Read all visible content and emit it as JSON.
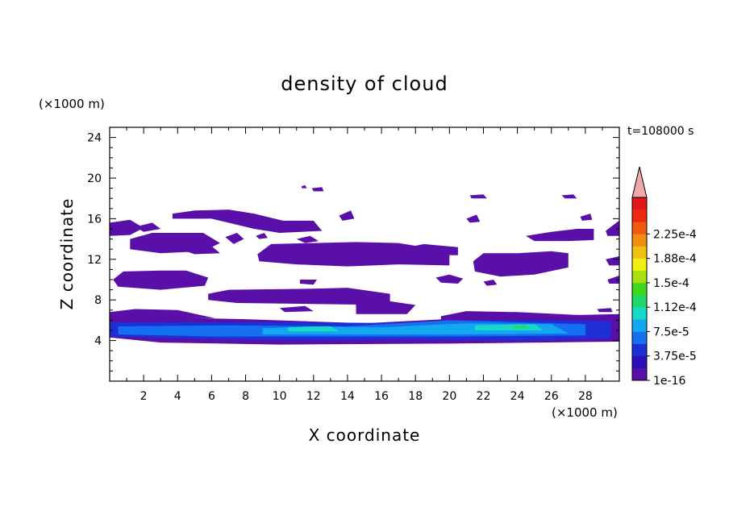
{
  "chart_data": {
    "type": "heatmap",
    "title": "density of cloud",
    "xlabel": "X coordinate",
    "ylabel": "Z coordinate",
    "x_unit": "(×1000 m)",
    "y_unit": "(×1000 m)",
    "time_label": "t=108000 s",
    "xlim": [
      0,
      30
    ],
    "ylim": [
      0,
      25
    ],
    "x_ticks": [
      2,
      4,
      6,
      8,
      10,
      12,
      14,
      16,
      18,
      20,
      22,
      24,
      26,
      28
    ],
    "y_ticks": [
      4,
      8,
      12,
      16,
      20,
      24
    ],
    "colorbar": {
      "labels": [
        "1e-16",
        "3.75e-5",
        "7.5e-5",
        "1.12e-4",
        "1.5e-4",
        "1.88e-4",
        "2.25e-4"
      ],
      "colors": [
        "#5a0fa8",
        "#2b10b8",
        "#1f2fd6",
        "#1470f0",
        "#12a8f0",
        "#18d8c8",
        "#1ed86a",
        "#3ed81c",
        "#a8e010",
        "#f0f010",
        "#f0c010",
        "#f08e10",
        "#f05a10",
        "#f02810",
        "#e01818"
      ],
      "over_color": "#f0a8a8"
    },
    "regions": [
      {
        "level": 0,
        "points": [
          [
            0,
            4.3
          ],
          [
            3,
            3.8
          ],
          [
            10,
            3.6
          ],
          [
            20,
            3.7
          ],
          [
            30,
            3.9
          ],
          [
            30,
            6.6
          ],
          [
            22,
            6.3
          ],
          [
            15,
            5.7
          ],
          [
            8,
            6.1
          ],
          [
            0,
            6.4
          ]
        ]
      },
      {
        "level": 1,
        "points": [
          [
            0,
            4.4
          ],
          [
            7,
            4.1
          ],
          [
            12,
            4.0
          ],
          [
            17,
            4.1
          ],
          [
            24,
            4.0
          ],
          [
            29.5,
            4.2
          ],
          [
            29.5,
            5.9
          ],
          [
            22,
            6.1
          ],
          [
            18,
            5.7
          ],
          [
            11,
            5.8
          ],
          [
            5,
            5.8
          ],
          [
            0,
            5.8
          ]
        ]
      },
      {
        "level": 2,
        "points": [
          [
            0.5,
            4.6
          ],
          [
            6,
            4.4
          ],
          [
            14,
            4.4
          ],
          [
            20,
            4.4
          ],
          [
            28,
            4.5
          ],
          [
            28,
            5.6
          ],
          [
            20,
            6.0
          ],
          [
            14,
            5.4
          ],
          [
            7,
            5.5
          ],
          [
            0.5,
            5.4
          ]
        ]
      },
      {
        "level": 3,
        "points": [
          [
            9,
            4.6
          ],
          [
            14,
            4.6
          ],
          [
            21,
            4.6
          ],
          [
            27,
            4.7
          ],
          [
            26,
            5.6
          ],
          [
            21,
            5.7
          ],
          [
            16,
            5.3
          ],
          [
            12,
            5.4
          ],
          [
            9,
            5.2
          ]
        ]
      },
      {
        "level": 4,
        "points": [
          [
            10.5,
            4.9
          ],
          [
            13.5,
            4.9
          ],
          [
            13,
            5.4
          ],
          [
            10.5,
            5.3
          ]
        ]
      },
      {
        "level": 4,
        "points": [
          [
            21.5,
            5.0
          ],
          [
            25.5,
            5.0
          ],
          [
            25,
            5.6
          ],
          [
            21.5,
            5.5
          ]
        ]
      },
      {
        "level": 5,
        "points": [
          [
            23.7,
            5.2
          ],
          [
            24.7,
            5.2
          ],
          [
            24.5,
            5.5
          ],
          [
            23.8,
            5.5
          ]
        ]
      },
      {
        "level": 0,
        "points": [
          [
            0,
            6.8
          ],
          [
            1.5,
            7.1
          ],
          [
            4,
            7.0
          ],
          [
            6.2,
            6.2
          ],
          [
            0,
            6.2
          ]
        ]
      },
      {
        "level": 0,
        "points": [
          [
            19.5,
            6.4
          ],
          [
            21,
            6.9
          ],
          [
            24,
            6.8
          ],
          [
            29,
            6.4
          ],
          [
            29,
            6.0
          ],
          [
            19.5,
            6.0
          ]
        ]
      },
      {
        "level": 0,
        "points": [
          [
            3,
            6.3
          ],
          [
            3.5,
            6.8
          ],
          [
            4.5,
            6.3
          ]
        ]
      },
      {
        "level": 0,
        "points": [
          [
            14.5,
            7.8
          ],
          [
            16,
            8.0
          ],
          [
            18,
            7.5
          ],
          [
            17.5,
            6.6
          ],
          [
            14.5,
            6.6
          ]
        ]
      },
      {
        "level": 0,
        "points": [
          [
            5.8,
            8.6
          ],
          [
            7,
            9.0
          ],
          [
            12,
            9.1
          ],
          [
            14,
            9.2
          ],
          [
            16.5,
            8.6
          ],
          [
            16.5,
            7.5
          ],
          [
            12,
            7.6
          ],
          [
            7.5,
            7.7
          ],
          [
            5.8,
            8.0
          ]
        ]
      },
      {
        "level": 0,
        "points": [
          [
            0.2,
            10.0
          ],
          [
            0.8,
            10.8
          ],
          [
            3,
            10.9
          ],
          [
            4.5,
            10.9
          ],
          [
            5.8,
            10.2
          ],
          [
            5.6,
            9.4
          ],
          [
            3,
            9.0
          ],
          [
            0.5,
            9.3
          ]
        ]
      },
      {
        "level": 0,
        "points": [
          [
            11.2,
            10.0
          ],
          [
            12.2,
            10.0
          ],
          [
            12,
            9.5
          ],
          [
            11.2,
            9.6
          ]
        ]
      },
      {
        "level": 0,
        "points": [
          [
            1.2,
            14.0
          ],
          [
            2.5,
            14.6
          ],
          [
            4,
            14.6
          ],
          [
            5.5,
            14.6
          ],
          [
            6.5,
            13.6
          ],
          [
            5.5,
            12.8
          ],
          [
            3,
            12.6
          ],
          [
            1.2,
            13.0
          ]
        ]
      },
      {
        "level": 0,
        "points": [
          [
            4.5,
            12.8
          ],
          [
            6,
            13.3
          ],
          [
            6.5,
            12.6
          ],
          [
            5,
            12.5
          ]
        ]
      },
      {
        "level": 0,
        "points": [
          [
            8.7,
            12.5
          ],
          [
            9.5,
            13.5
          ],
          [
            12,
            13.6
          ],
          [
            14.5,
            13.7
          ],
          [
            17,
            13.6
          ],
          [
            18.5,
            13.2
          ],
          [
            20,
            13.0
          ],
          [
            20,
            11.4
          ],
          [
            17,
            11.5
          ],
          [
            14,
            11.3
          ],
          [
            11,
            11.5
          ],
          [
            8.8,
            11.8
          ]
        ]
      },
      {
        "level": 0,
        "points": [
          [
            17,
            13.0
          ],
          [
            18.5,
            13.5
          ],
          [
            20.5,
            13.2
          ],
          [
            20.5,
            12.4
          ],
          [
            17,
            12.5
          ]
        ]
      },
      {
        "level": 0,
        "points": [
          [
            0,
            15.6
          ],
          [
            1.2,
            15.9
          ],
          [
            2,
            15.1
          ],
          [
            1.2,
            14.4
          ],
          [
            0,
            14.3
          ]
        ]
      },
      {
        "level": 0,
        "points": [
          [
            1.5,
            15.2
          ],
          [
            2.5,
            15.6
          ],
          [
            3,
            15.0
          ],
          [
            2,
            14.7
          ]
        ]
      },
      {
        "level": 0,
        "points": [
          [
            3.7,
            16.5
          ],
          [
            5,
            16.8
          ],
          [
            7,
            16.9
          ],
          [
            8.5,
            16.5
          ],
          [
            10.2,
            15.8
          ],
          [
            12,
            15.8
          ],
          [
            12.5,
            14.8
          ],
          [
            10,
            14.6
          ],
          [
            8.5,
            15.0
          ],
          [
            6,
            16.0
          ],
          [
            3.7,
            16.0
          ]
        ]
      },
      {
        "level": 0,
        "points": [
          [
            6.8,
            14.2
          ],
          [
            7.5,
            14.6
          ],
          [
            7.9,
            14.0
          ],
          [
            7.3,
            13.5
          ]
        ]
      },
      {
        "level": 0,
        "points": [
          [
            11.0,
            14.0
          ],
          [
            11.8,
            14.3
          ],
          [
            12.3,
            13.8
          ],
          [
            11.5,
            13.6
          ]
        ]
      },
      {
        "level": 0,
        "points": [
          [
            21.4,
            11.8
          ],
          [
            22,
            12.6
          ],
          [
            24,
            12.6
          ],
          [
            26,
            12.8
          ],
          [
            27,
            12.6
          ],
          [
            27,
            11.2
          ],
          [
            25,
            10.5
          ],
          [
            23,
            10.3
          ],
          [
            21.5,
            10.8
          ]
        ]
      },
      {
        "level": 0,
        "points": [
          [
            19.2,
            10.2
          ],
          [
            20,
            10.5
          ],
          [
            20.8,
            10.1
          ],
          [
            20.5,
            9.6
          ],
          [
            19.5,
            9.7
          ]
        ]
      },
      {
        "level": 0,
        "points": [
          [
            24.5,
            14.3
          ],
          [
            26,
            14.7
          ],
          [
            27.5,
            15.0
          ],
          [
            28.5,
            15.0
          ],
          [
            28.5,
            13.9
          ],
          [
            27,
            13.8
          ],
          [
            25,
            13.8
          ]
        ]
      },
      {
        "level": 0,
        "points": [
          [
            29.2,
            14.8
          ],
          [
            29.9,
            15.7
          ],
          [
            30,
            15.8
          ],
          [
            30,
            14.3
          ],
          [
            29.3,
            14.3
          ]
        ]
      },
      {
        "level": 0,
        "points": [
          [
            29.2,
            12.0
          ],
          [
            30,
            12.3
          ],
          [
            30,
            11.4
          ],
          [
            29.4,
            11.4
          ]
        ]
      },
      {
        "level": 0,
        "points": [
          [
            29.3,
            10.0
          ],
          [
            30,
            10.4
          ],
          [
            30,
            9.6
          ],
          [
            29.4,
            9.6
          ]
        ]
      },
      {
        "level": 0,
        "points": [
          [
            11.3,
            19.2
          ],
          [
            11.5,
            19.3
          ],
          [
            11.6,
            19.0
          ],
          [
            11.3,
            19.0
          ]
        ]
      },
      {
        "level": 0,
        "points": [
          [
            11.9,
            19.0
          ],
          [
            12.5,
            19.1
          ],
          [
            12.6,
            18.7
          ],
          [
            12.0,
            18.7
          ]
        ]
      },
      {
        "level": 0,
        "points": [
          [
            21.2,
            18.3
          ],
          [
            22,
            18.4
          ],
          [
            22.2,
            18.0
          ],
          [
            21.3,
            18.0
          ]
        ]
      },
      {
        "level": 0,
        "points": [
          [
            26.6,
            18.3
          ],
          [
            27.3,
            18.4
          ],
          [
            27.5,
            18.0
          ],
          [
            26.8,
            18.0
          ]
        ]
      },
      {
        "level": 0,
        "points": [
          [
            13.5,
            16.3
          ],
          [
            14.2,
            16.8
          ],
          [
            14.4,
            16.0
          ],
          [
            13.7,
            15.8
          ]
        ]
      },
      {
        "level": 0,
        "points": [
          [
            21.0,
            16.0
          ],
          [
            21.6,
            16.4
          ],
          [
            21.8,
            15.7
          ],
          [
            21.2,
            15.6
          ]
        ]
      },
      {
        "level": 0,
        "points": [
          [
            27.7,
            16.2
          ],
          [
            28.3,
            16.5
          ],
          [
            28.4,
            15.9
          ],
          [
            27.8,
            15.8
          ]
        ]
      },
      {
        "level": 0,
        "points": [
          [
            8.6,
            14.3
          ],
          [
            9.1,
            14.6
          ],
          [
            9.3,
            14.1
          ],
          [
            8.8,
            14.0
          ]
        ]
      },
      {
        "level": 0,
        "points": [
          [
            22.0,
            9.8
          ],
          [
            22.6,
            10.0
          ],
          [
            22.8,
            9.5
          ],
          [
            22.2,
            9.4
          ]
        ]
      },
      {
        "level": 0,
        "points": [
          [
            10.0,
            7.2
          ],
          [
            11.5,
            7.4
          ],
          [
            12.0,
            6.9
          ],
          [
            10.3,
            6.8
          ]
        ]
      },
      {
        "level": 0,
        "points": [
          [
            28.7,
            7.1
          ],
          [
            29.5,
            7.2
          ],
          [
            29.6,
            6.8
          ],
          [
            28.8,
            6.8
          ]
        ]
      }
    ]
  }
}
